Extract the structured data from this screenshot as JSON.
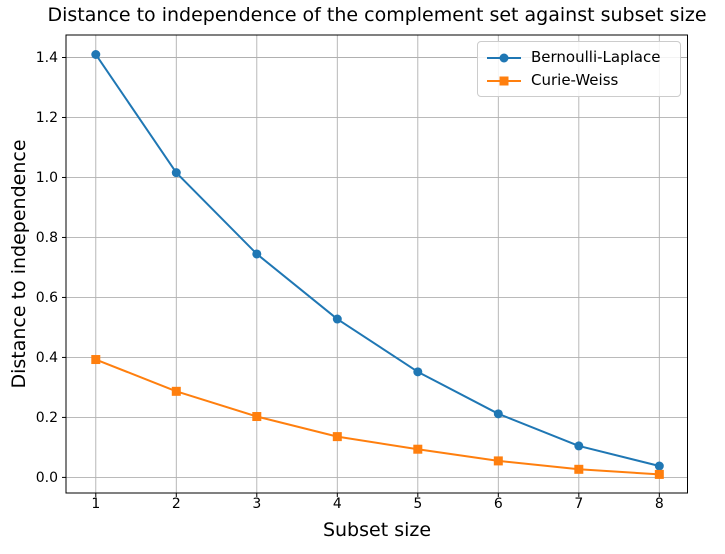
{
  "chart_data": {
    "type": "line",
    "title": "Distance to independence of the complement set against subset size",
    "xlabel": "Subset size",
    "ylabel": "Distance to independence",
    "x": [
      1,
      2,
      3,
      4,
      5,
      6,
      7,
      8
    ],
    "series": [
      {
        "name": "Bernoulli-Laplace",
        "color": "#1f77b4",
        "marker": "circle",
        "values": [
          1.41,
          1.016,
          0.745,
          0.528,
          0.352,
          0.212,
          0.105,
          0.038
        ]
      },
      {
        "name": "Curie-Weiss",
        "color": "#ff7f0e",
        "marker": "square",
        "values": [
          0.393,
          0.287,
          0.203,
          0.136,
          0.094,
          0.055,
          0.027,
          0.01
        ]
      }
    ],
    "xticks": [
      1,
      2,
      3,
      4,
      5,
      6,
      7,
      8
    ],
    "xtick_labels": [
      "1",
      "2",
      "3",
      "4",
      "5",
      "6",
      "7",
      "8"
    ],
    "yticks": [
      0.0,
      0.2,
      0.4,
      0.6,
      0.8,
      1.0,
      1.2,
      1.4
    ],
    "ytick_labels": [
      "0.0",
      "0.2",
      "0.4",
      "0.6",
      "0.8",
      "1.0",
      "1.2",
      "1.4"
    ],
    "xlim": [
      0.63,
      8.35
    ],
    "ylim": [
      -0.052,
      1.475
    ],
    "grid": true,
    "legend_position": "upper right",
    "colors": {
      "grid": "#b0b0b0",
      "spine": "#000000",
      "background": "#ffffff"
    }
  }
}
